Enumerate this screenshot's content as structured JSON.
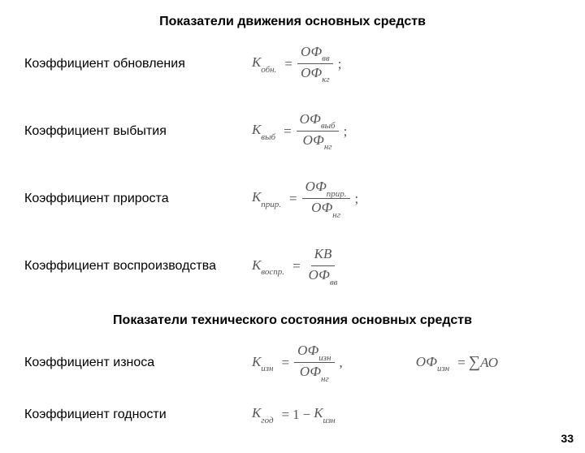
{
  "title1": "Показатели движения основных средств",
  "title2": "Показатели технического состояния основных средств",
  "items": {
    "r1_label": "Коэффициент обновления",
    "r2_label": "Коэффициент выбытия",
    "r3_label": "Коэффициент прироста",
    "r4_label": "Коэффициент воспроизводства",
    "r5_label": "Коэффициент износа",
    "r6_label": "Коэффициент годности"
  },
  "formulas": {
    "f1": {
      "lhs": "К",
      "lhs_sub": "обн.",
      "num": "ОФ",
      "num_sub": "вв",
      "den": "ОФ",
      "den_sub": "кг",
      "tail": ";"
    },
    "f2": {
      "lhs": "К",
      "lhs_sub": "выб",
      "num": "ОФ",
      "num_sub": "выб",
      "den": "ОФ",
      "den_sub": "нг",
      "tail": ";"
    },
    "f3": {
      "lhs": "К",
      "lhs_sub": "прир.",
      "num": "ОФ",
      "num_sub": "прир.",
      "den": "ОФ",
      "den_sub": "нг",
      "tail": ";"
    },
    "f4": {
      "lhs": "К",
      "lhs_sub": "воспр.",
      "num": "КВ",
      "num_sub": "",
      "den": "ОФ",
      "den_sub": "вв",
      "tail": ""
    },
    "f5": {
      "lhs": "К",
      "lhs_sub": "изн",
      "num": "ОФ",
      "num_sub": "изн",
      "den": "ОФ",
      "den_sub": "нг",
      "tail": ","
    },
    "f5b": {
      "lhs": "ОФ",
      "lhs_sub": "изн",
      "rhs_pre": "∑",
      "rhs": "АО"
    },
    "f6": {
      "lhs": "К",
      "lhs_sub": "год",
      "rhs_a": "1",
      "rhs_op": "−",
      "rhs_b": "К",
      "rhs_b_sub": "изн"
    }
  },
  "page_number": "33",
  "colors": {
    "text": "#000000",
    "formula": "#555555",
    "bg": "#ffffff"
  }
}
